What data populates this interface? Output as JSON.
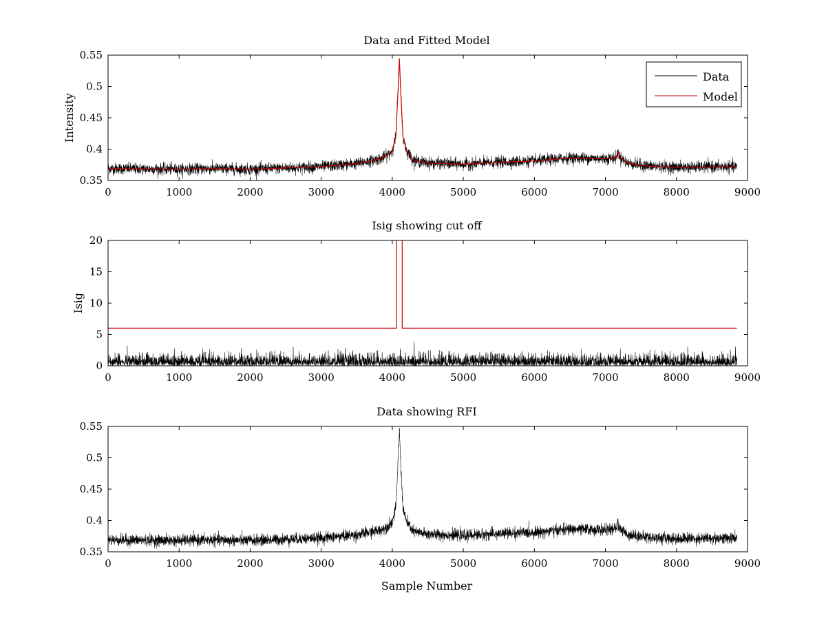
{
  "figure_background": "#ffffff",
  "colors": {
    "data": "#000000",
    "model": "#cc0000",
    "axes": "#000000"
  },
  "chart_data": [
    {
      "type": "line",
      "title": "Data and Fitted Model",
      "xlabel": "",
      "ylabel": "Intensity",
      "xlim": [
        0,
        9000
      ],
      "ylim": [
        0.35,
        0.55
      ],
      "xticks": [
        0,
        1000,
        2000,
        3000,
        4000,
        5000,
        6000,
        7000,
        8000,
        9000
      ],
      "xtick_labels": [
        "0",
        "1000",
        "2000",
        "3000",
        "4000",
        "5000",
        "6000",
        "7000",
        "8000",
        "9000"
      ],
      "yticks": [
        0.35,
        0.4,
        0.45,
        0.5,
        0.55
      ],
      "ytick_labels": [
        "0.35",
        "0.4",
        "0.45",
        "0.5",
        "0.55"
      ],
      "legend": {
        "position": "top-right",
        "entries": [
          "Data",
          "Model"
        ]
      },
      "series": [
        {
          "name": "Data",
          "color": "#000000",
          "kind": "noisy",
          "noise": 0.0045,
          "baseline": [
            [
              0,
              0.369
            ],
            [
              1000,
              0.368
            ],
            [
              1500,
              0.369
            ],
            [
              2000,
              0.368
            ],
            [
              3000,
              0.372
            ],
            [
              3500,
              0.377
            ],
            [
              3850,
              0.385
            ],
            [
              3950,
              0.392
            ],
            [
              4000,
              0.398
            ],
            [
              4050,
              0.42
            ],
            [
              4080,
              0.49
            ],
            [
              4100,
              0.545
            ],
            [
              4120,
              0.49
            ],
            [
              4150,
              0.42
            ],
            [
              4200,
              0.398
            ],
            [
              4300,
              0.382
            ],
            [
              4500,
              0.378
            ],
            [
              5000,
              0.376
            ],
            [
              5500,
              0.379
            ],
            [
              6000,
              0.381
            ],
            [
              6200,
              0.383
            ],
            [
              6500,
              0.386
            ],
            [
              7000,
              0.385
            ],
            [
              7150,
              0.386
            ],
            [
              7180,
              0.396
            ],
            [
              7200,
              0.388
            ],
            [
              7300,
              0.378
            ],
            [
              7600,
              0.373
            ],
            [
              8000,
              0.371
            ],
            [
              8850,
              0.372
            ]
          ]
        },
        {
          "name": "Model",
          "color": "#cc0000",
          "kind": "smooth",
          "baseline": [
            [
              0,
              0.369
            ],
            [
              1000,
              0.368
            ],
            [
              1500,
              0.369
            ],
            [
              2000,
              0.368
            ],
            [
              3000,
              0.372
            ],
            [
              3500,
              0.377
            ],
            [
              3850,
              0.385
            ],
            [
              3950,
              0.392
            ],
            [
              4000,
              0.398
            ],
            [
              4050,
              0.42
            ],
            [
              4080,
              0.49
            ],
            [
              4100,
              0.545
            ],
            [
              4120,
              0.49
            ],
            [
              4150,
              0.42
            ],
            [
              4200,
              0.398
            ],
            [
              4300,
              0.382
            ],
            [
              4500,
              0.378
            ],
            [
              5000,
              0.376
            ],
            [
              5500,
              0.379
            ],
            [
              6000,
              0.381
            ],
            [
              6200,
              0.383
            ],
            [
              6500,
              0.386
            ],
            [
              7000,
              0.385
            ],
            [
              7150,
              0.386
            ],
            [
              7180,
              0.396
            ],
            [
              7200,
              0.388
            ],
            [
              7300,
              0.378
            ],
            [
              7600,
              0.373
            ],
            [
              8000,
              0.371
            ],
            [
              8850,
              0.372
            ]
          ]
        }
      ]
    },
    {
      "type": "line",
      "title": "Isig showing cut off",
      "xlabel": "",
      "ylabel": "Isig",
      "xlim": [
        0,
        9000
      ],
      "ylim": [
        0,
        20
      ],
      "xticks": [
        0,
        1000,
        2000,
        3000,
        4000,
        5000,
        6000,
        7000,
        8000,
        9000
      ],
      "xtick_labels": [
        "0",
        "1000",
        "2000",
        "3000",
        "4000",
        "5000",
        "6000",
        "7000",
        "8000",
        "9000"
      ],
      "yticks": [
        0,
        5,
        10,
        15,
        20
      ],
      "ytick_labels": [
        "0",
        "5",
        "10",
        "15",
        "20"
      ],
      "series": [
        {
          "name": "Isig",
          "color": "#000000",
          "kind": "abs-noise",
          "scale": 0.9,
          "baseline": [
            [
              0,
              0
            ],
            [
              8850,
              0
            ]
          ]
        },
        {
          "name": "Cut off",
          "color": "#cc0000",
          "kind": "exact",
          "points": [
            [
              0,
              6
            ],
            [
              4060,
              6
            ],
            [
              4060,
              20.5
            ],
            [
              4140,
              20.5
            ],
            [
              4140,
              6
            ],
            [
              8850,
              6
            ]
          ]
        }
      ]
    },
    {
      "type": "line",
      "title": "Data showing RFI",
      "xlabel": "Sample Number",
      "ylabel": "",
      "xlim": [
        0,
        9000
      ],
      "ylim": [
        0.35,
        0.55
      ],
      "xticks": [
        0,
        1000,
        2000,
        3000,
        4000,
        5000,
        6000,
        7000,
        8000,
        9000
      ],
      "xtick_labels": [
        "0",
        "1000",
        "2000",
        "3000",
        "4000",
        "5000",
        "6000",
        "7000",
        "8000",
        "9000"
      ],
      "yticks": [
        0.35,
        0.4,
        0.45,
        0.5,
        0.55
      ],
      "ytick_labels": [
        "0.35",
        "0.4",
        "0.45",
        "0.5",
        "0.55"
      ],
      "series": [
        {
          "name": "Data",
          "color": "#000000",
          "kind": "noisy",
          "noise": 0.0045,
          "baseline": [
            [
              0,
              0.369
            ],
            [
              1000,
              0.368
            ],
            [
              1500,
              0.369
            ],
            [
              2000,
              0.368
            ],
            [
              3000,
              0.372
            ],
            [
              3500,
              0.377
            ],
            [
              3850,
              0.385
            ],
            [
              3950,
              0.392
            ],
            [
              4000,
              0.398
            ],
            [
              4050,
              0.42
            ],
            [
              4080,
              0.49
            ],
            [
              4100,
              0.545
            ],
            [
              4120,
              0.49
            ],
            [
              4150,
              0.42
            ],
            [
              4200,
              0.398
            ],
            [
              4300,
              0.382
            ],
            [
              4500,
              0.378
            ],
            [
              5000,
              0.376
            ],
            [
              5500,
              0.379
            ],
            [
              6000,
              0.381
            ],
            [
              6200,
              0.383
            ],
            [
              6500,
              0.386
            ],
            [
              7000,
              0.385
            ],
            [
              7150,
              0.386
            ],
            [
              7180,
              0.396
            ],
            [
              7200,
              0.388
            ],
            [
              7300,
              0.378
            ],
            [
              7600,
              0.373
            ],
            [
              8000,
              0.371
            ],
            [
              8850,
              0.372
            ]
          ]
        }
      ]
    }
  ]
}
